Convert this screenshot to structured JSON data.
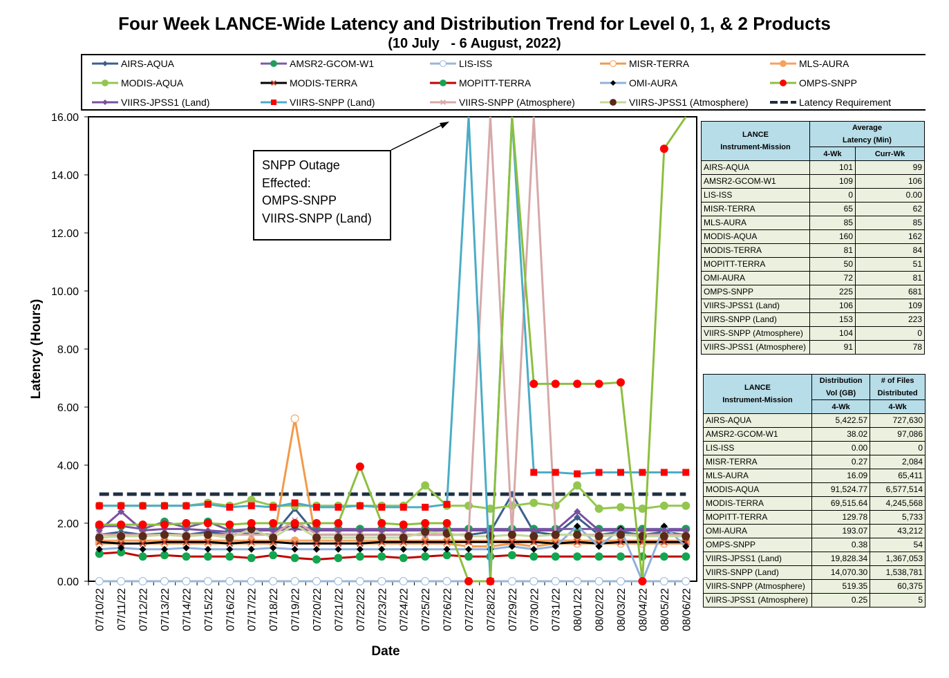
{
  "title": "Four Week LANCE-Wide Latency and Distribution Trend for Level 0, 1, & 2 Products",
  "subtitle": "(10 July   - 6 August, 2022)",
  "legend": [
    {
      "name": "AIRS-AQUA",
      "color": "#3c5e8c",
      "marker": "diamond",
      "mfill": "#3c5e8c"
    },
    {
      "name": "AMSR2-GCOM-W1",
      "color": "#7b5aa6",
      "marker": "circle",
      "mfill": "#1e9e5a"
    },
    {
      "name": "LIS-ISS",
      "color": "#9ab6d8",
      "marker": "circle",
      "mfill": "#ffffff"
    },
    {
      "name": "MISR-TERRA",
      "color": "#f29a4a",
      "marker": "circle",
      "mfill": "#ffffff"
    },
    {
      "name": "MLS-AURA",
      "color": "#f4a260",
      "marker": "circle",
      "mfill": "#f4a260"
    },
    {
      "name": "MODIS-AQUA",
      "color": "#94c64f",
      "marker": "circle",
      "mfill": "#94c64f"
    },
    {
      "name": "MODIS-TERRA",
      "color": "#000000",
      "marker": "x",
      "mfill": "#c0392b"
    },
    {
      "name": "MOPITT-TERRA",
      "color": "#c00000",
      "marker": "circle",
      "mfill": "#12a650"
    },
    {
      "name": "OMI-AURA",
      "color": "#8fb0dc",
      "marker": "diamond",
      "mfill": "#000000"
    },
    {
      "name": "OMPS-SNPP",
      "color": "#8cbf3f",
      "marker": "circle",
      "mfill": "#ff0000"
    },
    {
      "name": "VIIRS-JPSS1 (Land)",
      "color": "#7a4fa0",
      "marker": "diamond",
      "mfill": "#7a4fa0"
    },
    {
      "name": "VIIRS-SNPP (Land)",
      "color": "#4bacc6",
      "marker": "square",
      "mfill": "#ff0000"
    },
    {
      "name": "VIIRS-SNPP (Atmosphere)",
      "color": "#d7a9a9",
      "marker": "x",
      "mfill": "#d7a9a9"
    },
    {
      "name": "VIIRS-JPSS1 (Atmosphere)",
      "color": "#c4d79b",
      "marker": "circle",
      "mfill": "#5a2a1a"
    },
    {
      "name": "Latency Requirement",
      "color": "#1f2f3f",
      "marker": "dash",
      "mfill": "#1f2f3f"
    }
  ],
  "callout": {
    "lines": [
      "SNPP Outage",
      "Effected:",
      "OMPS-SNPP",
      "VIIRS-SNPP (Land)"
    ]
  },
  "latency_table": {
    "header_col1": [
      "LANCE",
      "Instrument-Mission"
    ],
    "header_col2": [
      "Average",
      "Latency (Min)"
    ],
    "sub_headers": [
      "4-Wk",
      "Curr-Wk"
    ],
    "rows": [
      [
        "AIRS-AQUA",
        "101",
        "99"
      ],
      [
        "AMSR2-GCOM-W1",
        "109",
        "106"
      ],
      [
        "LIS-ISS",
        "0",
        "0.00"
      ],
      [
        "MISR-TERRA",
        "65",
        "62"
      ],
      [
        "MLS-AURA",
        "85",
        "85"
      ],
      [
        "MODIS-AQUA",
        "160",
        "162"
      ],
      [
        "MODIS-TERRA",
        "81",
        "84"
      ],
      [
        "MOPITT-TERRA",
        "50",
        "51"
      ],
      [
        "OMI-AURA",
        "72",
        "81"
      ],
      [
        "OMPS-SNPP",
        "225",
        "681"
      ],
      [
        "VIIRS-JPSS1 (Land)",
        "106",
        "109"
      ],
      [
        "VIIRS-SNPP (Land)",
        "153",
        "223"
      ],
      [
        "VIIRS-SNPP (Atmosphere)",
        "104",
        "0"
      ],
      [
        "VIIRS-JPSS1 (Atmosphere)",
        "91",
        "78"
      ]
    ]
  },
  "distribution_table": {
    "header_col1": [
      "LANCE",
      "Instrument-Mission"
    ],
    "header_col2": [
      "Distribution",
      "Vol (GB)"
    ],
    "header_col3": [
      "# of Files",
      "Distributed"
    ],
    "sub_headers": [
      "4-Wk",
      "4-Wk"
    ],
    "rows": [
      [
        "AIRS-AQUA",
        "5,422.57",
        "727,630"
      ],
      [
        "AMSR2-GCOM-W1",
        "38.02",
        "97,086"
      ],
      [
        "LIS-ISS",
        "0.00",
        "0"
      ],
      [
        "MISR-TERRA",
        "0.27",
        "2,084"
      ],
      [
        "MLS-AURA",
        "16.09",
        "65,411"
      ],
      [
        "MODIS-AQUA",
        "91,524.77",
        "6,577,514"
      ],
      [
        "MODIS-TERRA",
        "69,515.64",
        "4,245,568"
      ],
      [
        "MOPITT-TERRA",
        "129.78",
        "5,733"
      ],
      [
        "OMI-AURA",
        "193.07",
        "43,212"
      ],
      [
        "OMPS-SNPP",
        "0.38",
        "54"
      ],
      [
        "VIIRS-JPSS1 (Land)",
        "19,828.34",
        "1,367,053"
      ],
      [
        "VIIRS-SNPP (Land)",
        "14,070.30",
        "1,538,781"
      ],
      [
        "VIIRS-SNPP (Atmosphere)",
        "519.35",
        "60,375"
      ],
      [
        "VIIRS-JPSS1 (Atmosphere)",
        "0.25",
        "5"
      ]
    ]
  },
  "chart_data": {
    "type": "line",
    "title": "Four Week LANCE-Wide Latency and Distribution Trend for Level 0, 1, & 2 Products",
    "xlabel": "Date",
    "ylabel": "Latency (Hours)",
    "ylim": [
      0,
      16
    ],
    "yticks": [
      "0.00",
      "2.00",
      "4.00",
      "6.00",
      "8.00",
      "10.00",
      "12.00",
      "14.00",
      "16.00"
    ],
    "grid": false,
    "legend_position": "top",
    "categories": [
      "07/10/22",
      "07/11/22",
      "07/12/22",
      "07/13/22",
      "07/14/22",
      "07/15/22",
      "07/16/22",
      "07/17/22",
      "07/18/22",
      "07/19/22",
      "07/20/22",
      "07/21/22",
      "07/22/22",
      "07/23/22",
      "07/24/22",
      "07/25/22",
      "07/26/22",
      "07/27/22",
      "07/28/22",
      "07/29/22",
      "07/30/22",
      "07/31/22",
      "08/01/22",
      "08/02/22",
      "08/03/22",
      "08/04/22",
      "08/05/22",
      "08/06/22"
    ],
    "series": [
      {
        "name": "AIRS-AQUA",
        "values": [
          1.6,
          1.7,
          1.6,
          1.65,
          1.6,
          1.7,
          1.6,
          1.65,
          1.6,
          2.5,
          1.6,
          1.6,
          1.6,
          1.6,
          1.6,
          1.6,
          1.6,
          1.6,
          1.7,
          3.0,
          1.7,
          1.6,
          2.2,
          1.6,
          1.7,
          1.6,
          1.7,
          1.6
        ]
      },
      {
        "name": "AMSR2-GCOM-W1",
        "values": [
          1.9,
          1.9,
          1.8,
          2.05,
          1.85,
          2.05,
          1.75,
          1.8,
          1.8,
          1.9,
          1.8,
          1.8,
          1.8,
          1.8,
          1.8,
          1.8,
          1.8,
          1.8,
          1.8,
          1.8,
          1.8,
          1.8,
          1.8,
          1.8,
          1.8,
          1.8,
          1.8,
          1.8
        ]
      },
      {
        "name": "LIS-ISS",
        "values": [
          0,
          0,
          0,
          0,
          0,
          0,
          0,
          0,
          0,
          0,
          0,
          0,
          0,
          0,
          0,
          0,
          0,
          0,
          0,
          0,
          0,
          0,
          0,
          0,
          0,
          0,
          0,
          0
        ]
      },
      {
        "name": "MISR-TERRA",
        "values": [
          1.3,
          1.3,
          1.3,
          1.3,
          1.3,
          1.3,
          1.3,
          1.3,
          1.3,
          5.6,
          1.3,
          1.3,
          1.3,
          1.3,
          1.3,
          1.3,
          1.3,
          1.2,
          1.2,
          1.3,
          1.2,
          1.3,
          1.3,
          1.3,
          1.3,
          1.3,
          1.3,
          1.3
        ]
      },
      {
        "name": "MLS-AURA",
        "values": [
          1.4,
          1.4,
          1.4,
          1.4,
          1.4,
          1.4,
          1.4,
          1.4,
          1.4,
          1.4,
          1.4,
          1.4,
          1.4,
          1.4,
          1.4,
          1.4,
          1.4,
          1.4,
          1.4,
          1.4,
          1.4,
          1.4,
          1.4,
          1.4,
          1.4,
          1.4,
          1.4,
          1.4
        ]
      },
      {
        "name": "MODIS-AQUA",
        "values": [
          2.6,
          2.6,
          2.6,
          2.6,
          2.6,
          2.7,
          2.6,
          2.8,
          2.6,
          2.6,
          2.6,
          2.6,
          2.6,
          2.6,
          2.6,
          3.3,
          2.6,
          2.6,
          2.5,
          2.6,
          2.7,
          2.6,
          3.3,
          2.5,
          2.55,
          2.5,
          2.6,
          2.6
        ]
      },
      {
        "name": "MODIS-TERRA",
        "values": [
          1.35,
          1.3,
          1.3,
          1.35,
          1.35,
          1.35,
          1.3,
          1.35,
          1.35,
          1.3,
          1.3,
          1.3,
          1.3,
          1.35,
          1.35,
          1.35,
          1.35,
          1.35,
          1.35,
          1.35,
          1.35,
          1.3,
          1.35,
          1.3,
          1.35,
          1.35,
          1.35,
          1.35
        ]
      },
      {
        "name": "MOPITT-TERRA",
        "values": [
          0.95,
          1.0,
          0.85,
          0.9,
          0.85,
          0.85,
          0.85,
          0.8,
          0.9,
          0.8,
          0.75,
          0.8,
          0.85,
          0.85,
          0.8,
          0.85,
          0.9,
          0.85,
          0.85,
          0.9,
          0.85,
          0.85,
          0.85,
          0.85,
          0.85,
          0.85,
          0.85,
          0.85
        ]
      },
      {
        "name": "OMI-AURA",
        "values": [
          1.1,
          1.15,
          1.1,
          1.1,
          1.15,
          1.1,
          1.1,
          1.1,
          1.15,
          1.1,
          1.1,
          1.1,
          1.1,
          1.1,
          1.1,
          1.1,
          1.1,
          1.1,
          1.1,
          1.2,
          1.1,
          1.2,
          1.9,
          1.2,
          1.8,
          0.0,
          1.9,
          1.2
        ]
      },
      {
        "name": "OMPS-SNPP",
        "values": [
          1.95,
          1.95,
          1.95,
          1.95,
          2.0,
          2.0,
          1.95,
          2.0,
          2.0,
          2.0,
          2.0,
          2.0,
          3.95,
          2.0,
          1.95,
          2.0,
          2.0,
          0.0,
          0.0,
          16.0,
          6.8,
          6.8,
          6.8,
          6.8,
          6.85,
          0.0,
          14.9,
          16.0
        ]
      },
      {
        "name": "VIIRS-JPSS1 (Land)",
        "values": [
          1.75,
          2.4,
          1.75,
          1.8,
          1.8,
          1.75,
          1.7,
          1.75,
          1.75,
          1.8,
          1.75,
          1.75,
          1.75,
          1.75,
          1.75,
          1.75,
          1.75,
          1.75,
          1.75,
          1.75,
          1.75,
          1.75,
          2.4,
          1.75,
          1.75,
          1.75,
          1.75,
          1.75
        ]
      },
      {
        "name": "VIIRS-SNPP (Land)",
        "values": [
          2.6,
          2.6,
          2.6,
          2.6,
          2.6,
          2.65,
          2.55,
          2.6,
          2.55,
          2.7,
          2.55,
          2.55,
          2.6,
          2.55,
          2.55,
          2.55,
          2.65,
          16.0,
          0.0,
          16.0,
          3.75,
          3.75,
          3.7,
          3.75,
          3.75,
          3.75,
          3.75,
          3.75
        ]
      },
      {
        "name": "VIIRS-SNPP (Atmosphere)",
        "values": [
          1.6,
          1.6,
          1.6,
          1.6,
          1.6,
          1.6,
          1.6,
          1.6,
          1.6,
          2.1,
          1.6,
          1.6,
          1.6,
          1.6,
          1.6,
          1.6,
          1.6,
          1.6,
          16.0,
          1.6,
          16.0,
          1.6,
          1.6,
          1.6,
          1.6,
          1.6,
          1.6,
          1.6
        ]
      },
      {
        "name": "VIIRS-JPSS1 (Atmosphere)",
        "values": [
          1.5,
          1.55,
          1.55,
          1.6,
          1.55,
          1.6,
          1.5,
          1.8,
          1.5,
          1.95,
          1.5,
          1.5,
          1.5,
          1.5,
          1.5,
          1.7,
          1.65,
          1.55,
          1.55,
          1.6,
          1.55,
          1.6,
          1.6,
          1.55,
          1.6,
          1.55,
          1.55,
          1.55
        ]
      },
      {
        "name": "Latency Requirement",
        "values": [
          3,
          3,
          3,
          3,
          3,
          3,
          3,
          3,
          3,
          3,
          3,
          3,
          3,
          3,
          3,
          3,
          3,
          3,
          3,
          3,
          3,
          3,
          3,
          3,
          3,
          3,
          3,
          3
        ]
      }
    ]
  }
}
